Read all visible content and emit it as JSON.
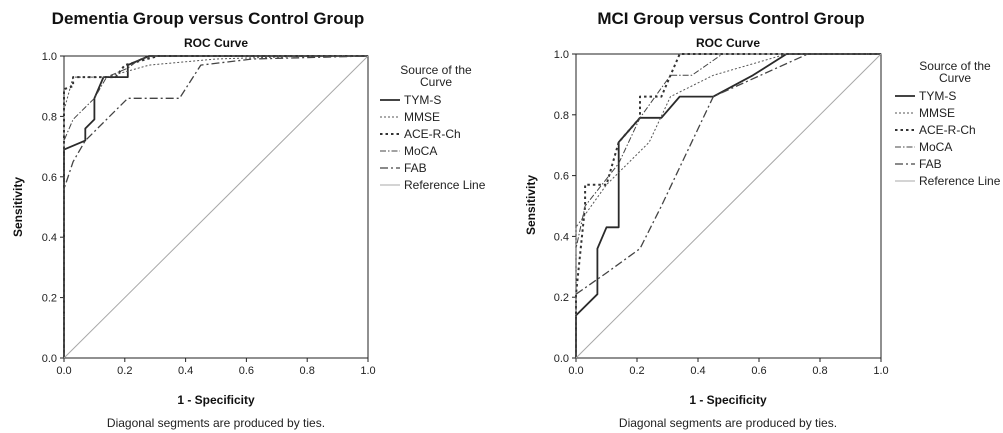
{
  "chart_data": [
    {
      "type": "line",
      "title": "Dementia Group versus Control Group",
      "subtitle": "ROC Curve",
      "xlabel": "1 - Specificity",
      "ylabel": "Sensitivity",
      "xlim": [
        0,
        1
      ],
      "ylim": [
        0,
        1
      ],
      "x_ticks": [
        "0.0",
        "0.2",
        "0.4",
        "0.6",
        "0.8",
        "1.0"
      ],
      "y_ticks": [
        "0.0",
        "0.2",
        "0.4",
        "0.6",
        "0.8",
        "1.0"
      ],
      "legend_title": "Source of the Curve",
      "legend_position": "right",
      "footnote": "Diagonal segments are produced by ties.",
      "series": [
        {
          "name": "TYM-S",
          "style": "solid",
          "points": [
            [
              0,
              0
            ],
            [
              0,
              0.69
            ],
            [
              0.07,
              0.72
            ],
            [
              0.07,
              0.76
            ],
            [
              0.1,
              0.79
            ],
            [
              0.1,
              0.86
            ],
            [
              0.13,
              0.93
            ],
            [
              0.21,
              0.93
            ],
            [
              0.21,
              0.97
            ],
            [
              0.28,
              1.0
            ],
            [
              1,
              1
            ]
          ]
        },
        {
          "name": "MMSE",
          "style": "dotted-fine",
          "points": [
            [
              0,
              0
            ],
            [
              0,
              0.82
            ],
            [
              0.03,
              0.93
            ],
            [
              0.14,
              0.93
            ],
            [
              0.28,
              0.97
            ],
            [
              0.5,
              0.99
            ],
            [
              0.82,
              1.0
            ],
            [
              1,
              1
            ]
          ]
        },
        {
          "name": "ACE-R-Ch",
          "style": "dotted",
          "points": [
            [
              0,
              0
            ],
            [
              0,
              0.89
            ],
            [
              0.03,
              0.9
            ],
            [
              0.03,
              0.93
            ],
            [
              0.17,
              0.93
            ],
            [
              0.2,
              0.97
            ],
            [
              0.31,
              1.0
            ],
            [
              1,
              1
            ]
          ]
        },
        {
          "name": "MoCA",
          "style": "dashdot-fine",
          "points": [
            [
              0,
              0
            ],
            [
              0,
              0.72
            ],
            [
              0.03,
              0.79
            ],
            [
              0.1,
              0.86
            ],
            [
              0.14,
              0.93
            ],
            [
              0.21,
              0.96
            ],
            [
              0.25,
              0.99
            ],
            [
              0.3,
              1.0
            ],
            [
              1,
              1
            ]
          ]
        },
        {
          "name": "FAB",
          "style": "dashdot",
          "points": [
            [
              0,
              0
            ],
            [
              0,
              0.56
            ],
            [
              0.03,
              0.65
            ],
            [
              0.07,
              0.72
            ],
            [
              0.14,
              0.79
            ],
            [
              0.21,
              0.86
            ],
            [
              0.38,
              0.86
            ],
            [
              0.45,
              0.97
            ],
            [
              0.62,
              0.99
            ],
            [
              1,
              1
            ]
          ]
        },
        {
          "name": "Reference Line",
          "style": "reference",
          "points": [
            [
              0,
              0
            ],
            [
              1,
              1
            ]
          ]
        }
      ]
    },
    {
      "type": "line",
      "title": "MCI Group versus Control Group",
      "subtitle": "ROC Curve",
      "xlabel": "1 - Specificity",
      "ylabel": "Sensitivity",
      "xlim": [
        0,
        1
      ],
      "ylim": [
        0,
        1
      ],
      "x_ticks": [
        "0.0",
        "0.2",
        "0.4",
        "0.6",
        "0.8",
        "1.0"
      ],
      "y_ticks": [
        "0.0",
        "0.2",
        "0.4",
        "0.6",
        "0.8",
        "1.0"
      ],
      "legend_title": "Source of the Curve",
      "legend_position": "right",
      "footnote": "Diagonal segments are produced by ties.",
      "series": [
        {
          "name": "TYM-S",
          "style": "solid",
          "points": [
            [
              0,
              0
            ],
            [
              0,
              0.14
            ],
            [
              0.07,
              0.21
            ],
            [
              0.07,
              0.36
            ],
            [
              0.1,
              0.43
            ],
            [
              0.14,
              0.43
            ],
            [
              0.14,
              0.71
            ],
            [
              0.21,
              0.79
            ],
            [
              0.28,
              0.79
            ],
            [
              0.34,
              0.86
            ],
            [
              0.45,
              0.86
            ],
            [
              0.58,
              0.93
            ],
            [
              0.69,
              1.0
            ],
            [
              1,
              1
            ]
          ]
        },
        {
          "name": "MMSE",
          "style": "dotted-fine",
          "points": [
            [
              0,
              0
            ],
            [
              0,
              0.43
            ],
            [
              0.1,
              0.57
            ],
            [
              0.24,
              0.71
            ],
            [
              0.31,
              0.86
            ],
            [
              0.45,
              0.93
            ],
            [
              0.69,
              1.0
            ],
            [
              1,
              1
            ]
          ]
        },
        {
          "name": "ACE-R-Ch",
          "style": "dotted",
          "points": [
            [
              0,
              0
            ],
            [
              0,
              0.21
            ],
            [
              0.03,
              0.5
            ],
            [
              0.03,
              0.57
            ],
            [
              0.1,
              0.57
            ],
            [
              0.14,
              0.71
            ],
            [
              0.21,
              0.79
            ],
            [
              0.21,
              0.86
            ],
            [
              0.28,
              0.86
            ],
            [
              0.31,
              0.93
            ],
            [
              0.34,
              1.0
            ],
            [
              1,
              1
            ]
          ]
        },
        {
          "name": "MoCA",
          "style": "dashdot-fine",
          "points": [
            [
              0,
              0
            ],
            [
              0,
              0.36
            ],
            [
              0.03,
              0.5
            ],
            [
              0.14,
              0.64
            ],
            [
              0.21,
              0.79
            ],
            [
              0.31,
              0.93
            ],
            [
              0.38,
              0.93
            ],
            [
              0.48,
              1.0
            ],
            [
              1,
              1
            ]
          ]
        },
        {
          "name": "FAB",
          "style": "dashdot",
          "points": [
            [
              0,
              0
            ],
            [
              0,
              0.21
            ],
            [
              0.1,
              0.28
            ],
            [
              0.21,
              0.36
            ],
            [
              0.28,
              0.5
            ],
            [
              0.45,
              0.86
            ],
            [
              0.76,
              1.0
            ],
            [
              1,
              1
            ]
          ]
        },
        {
          "name": "Reference Line",
          "style": "reference",
          "points": [
            [
              0,
              0
            ],
            [
              1,
              1
            ]
          ]
        }
      ]
    }
  ]
}
